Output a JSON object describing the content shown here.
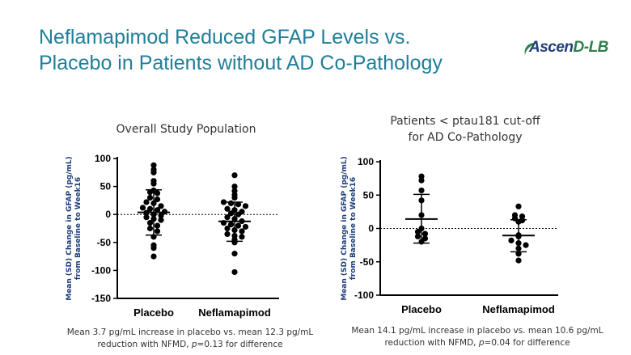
{
  "slide": {
    "title_line1": "Neflamapimod Reduced GFAP Levels vs.",
    "title_line2": "Placebo in Patients without AD Co-Pathology",
    "logo_text_a": "Ascen",
    "logo_text_b": "D-LB"
  },
  "chart_data": [
    {
      "type": "scatter",
      "title": "Overall Study Population",
      "ylabel_line1": "Mean (SD) Change in GFAP (pg/mL)",
      "ylabel_line2": "from Baseline to Week16",
      "categories": [
        "Placebo",
        "Neflamapimod"
      ],
      "ylim": [
        -150,
        100
      ],
      "yticks": [
        100,
        50,
        0,
        -50,
        -100,
        -150
      ],
      "reference_line": 0,
      "series": [
        {
          "mean": 3.7,
          "sd_upper": 44,
          "sd_lower": -37,
          "points": [
            88,
            80,
            75,
            60,
            55,
            43,
            40,
            38,
            30,
            27,
            22,
            20,
            15,
            12,
            10,
            8,
            5,
            3,
            0,
            -2,
            -5,
            -8,
            -10,
            -15,
            -20,
            -25,
            -30,
            -40,
            -55,
            -60,
            -75
          ]
        },
        {
          "mean": -12.3,
          "sd_upper": 22,
          "sd_lower": -48,
          "points": [
            70,
            50,
            42,
            35,
            30,
            22,
            20,
            18,
            15,
            10,
            8,
            5,
            2,
            0,
            -5,
            -8,
            -12,
            -15,
            -18,
            -20,
            -22,
            -25,
            -28,
            -30,
            -35,
            -38,
            -40,
            -45,
            -50,
            -70,
            -103
          ]
        }
      ],
      "caption_line1": "Mean 3.7 pg/mL increase in placebo vs. mean 12.3 pg/mL",
      "caption_line2_a": "reduction with NFMD,",
      "caption_p": "p",
      "caption_line2_b": "=0.13 for difference"
    },
    {
      "type": "scatter",
      "title_line1": "Patients < ptau181 cut-off",
      "title_line2": "for AD Co-Pathology",
      "ylabel_line1": "Mean (SD) Change in GFAP (pg/mL)",
      "ylabel_line2": "from Baseline to Week16",
      "categories": [
        "Placebo",
        "Neflamapimod"
      ],
      "ylim": [
        -100,
        100
      ],
      "yticks": [
        100,
        50,
        0,
        -50,
        -100
      ],
      "reference_line": 0,
      "series": [
        {
          "mean": 14.1,
          "sd_upper": 51,
          "sd_lower": -22,
          "points": [
            78,
            72,
            57,
            42,
            20,
            0,
            -5,
            -8,
            -12,
            -15,
            -20
          ]
        },
        {
          "mean": -10.6,
          "sd_upper": 13,
          "sd_lower": -35,
          "points": [
            33,
            20,
            18,
            15,
            12,
            10,
            -10,
            -12,
            -18,
            -22,
            -25,
            -30,
            -38,
            -48
          ]
        }
      ],
      "caption_line1": "Mean 14.1 pg/mL increase in placebo vs. mean 10.6 pg/mL",
      "caption_line2_a": "reduction with NFMD,",
      "caption_p": "p",
      "caption_line2_b": "=0.04 for difference"
    }
  ]
}
